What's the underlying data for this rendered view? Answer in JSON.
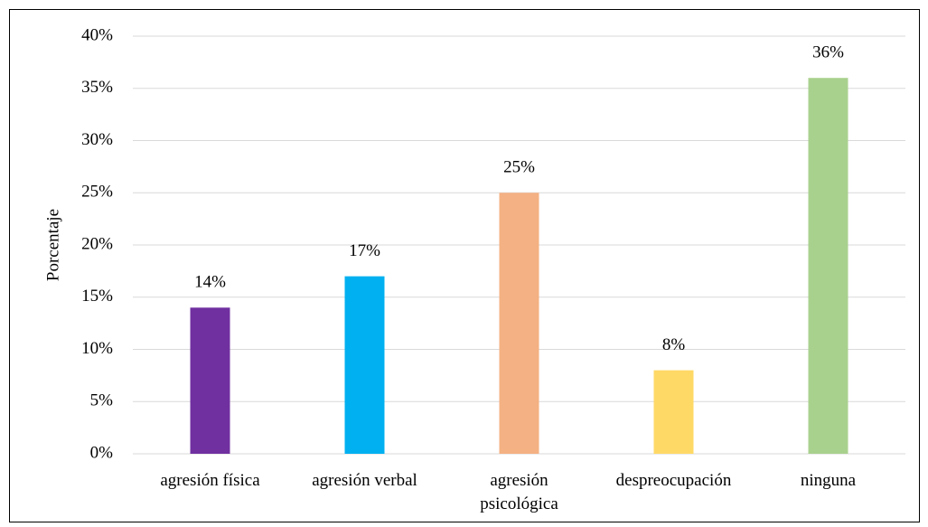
{
  "chart_data": {
    "type": "bar",
    "y_label": "Porcentaje",
    "categories": [
      "agresión física",
      "agresión verbal",
      "agresión psicológica",
      "despreocupación",
      "ninguna"
    ],
    "values": [
      14,
      17,
      25,
      8,
      36
    ],
    "value_labels": [
      "14%",
      "17%",
      "25%",
      "8%",
      "36%"
    ],
    "colors": [
      "#7030a0",
      "#00b0f0",
      "#f4b183",
      "#ffd966",
      "#a9d18e"
    ],
    "ylim": [
      0,
      40
    ],
    "yticks": [
      {
        "value": 0,
        "label": "0%"
      },
      {
        "value": 5,
        "label": "5%"
      },
      {
        "value": 10,
        "label": "10%"
      },
      {
        "value": 15,
        "label": "15%"
      },
      {
        "value": 20,
        "label": "20%"
      },
      {
        "value": 25,
        "label": "25%"
      },
      {
        "value": 30,
        "label": "30%"
      },
      {
        "value": 35,
        "label": "35%"
      },
      {
        "value": 40,
        "label": "40%"
      }
    ],
    "grid": true
  }
}
